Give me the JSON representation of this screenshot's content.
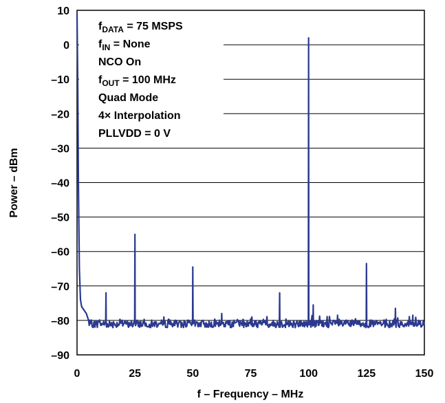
{
  "chart_data": {
    "type": "line",
    "title": "",
    "xlabel": "f – Frequency – MHz",
    "ylabel": "Power – dBm",
    "xlim": [
      0,
      150
    ],
    "ylim": [
      -90,
      10
    ],
    "x_ticks": [
      "0",
      "25",
      "50",
      "75",
      "100",
      "125",
      "150"
    ],
    "y_ticks": [
      "10",
      "0",
      "–10",
      "–20",
      "–30",
      "–40",
      "–50",
      "–60",
      "–70",
      "–80",
      "–90"
    ],
    "grid": "horizontal",
    "line_color": "#2b3990",
    "annotations": [
      {
        "main": "f",
        "sub": "DATA",
        "rest": " = 75 MSPS"
      },
      {
        "main": "f",
        "sub": "IN",
        "rest": " = None"
      },
      {
        "main": "NCO On",
        "sub": "",
        "rest": ""
      },
      {
        "main": "f",
        "sub": "OUT",
        "rest": " = 100 MHz"
      },
      {
        "main": "Quad Mode",
        "sub": "",
        "rest": ""
      },
      {
        "main": "4× Interpolation",
        "sub": "",
        "rest": ""
      },
      {
        "main": "PLLVDD = 0 V",
        "sub": "",
        "rest": ""
      }
    ],
    "noise_floor_dbm": -81,
    "low_freq_profile": {
      "x": [
        0,
        0.3,
        0.6,
        1,
        1.5,
        2,
        2.5,
        3,
        3.5,
        4,
        4.5,
        5
      ],
      "values": [
        9,
        -10,
        -40,
        -65,
        -74,
        -76,
        -76.5,
        -77,
        -77.5,
        -78,
        -79,
        -80
      ]
    },
    "spurs": {
      "x": [
        12.5,
        25,
        37.5,
        50,
        62.5,
        87.5,
        100,
        102,
        112.5,
        125,
        137.5,
        145
      ],
      "values": [
        -72,
        -55,
        -79,
        -64.5,
        -78,
        -72,
        2,
        -75.5,
        -78.5,
        -63.5,
        -76.5,
        -78.5
      ]
    }
  }
}
